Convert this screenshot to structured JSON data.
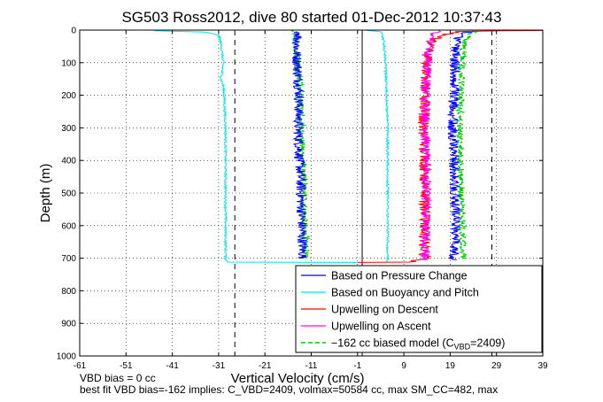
{
  "chart_data": {
    "type": "line",
    "title": "SG503 Ross2012, dive 80 started 01-Dec-2012 10:37:43",
    "xlabel": "Vertical Velocity (cm/s)",
    "ylabel": "Depth (m)",
    "xlim": [
      -61,
      39
    ],
    "ylim": [
      1000,
      0
    ],
    "x_ticks": [
      -61,
      -51,
      -41,
      -31,
      -21,
      -11,
      -1,
      9,
      19,
      29,
      39
    ],
    "y_ticks": [
      0,
      100,
      200,
      300,
      400,
      500,
      600,
      700,
      800,
      900,
      1000
    ],
    "grid": true,
    "legend_position": "bottom-right",
    "reference_lines": {
      "zero_line_x": 0,
      "dashed_lines_x": [
        -27.5,
        28
      ]
    },
    "series": [
      {
        "name": "Based on Pressure Change",
        "color": "#0000ff",
        "style": "solid",
        "descent": [
          [
            -13.5,
            5
          ],
          [
            -13.8,
            20
          ],
          [
            -14.2,
            60
          ],
          [
            -14.0,
            100
          ],
          [
            -13.6,
            200
          ],
          [
            -13.8,
            300
          ],
          [
            -13.5,
            400
          ],
          [
            -13.2,
            500
          ],
          [
            -13.0,
            600
          ],
          [
            -12.8,
            700
          ]
        ],
        "ascent": [
          [
            19.5,
            705
          ],
          [
            19.8,
            700
          ],
          [
            20.2,
            600
          ],
          [
            20.0,
            500
          ],
          [
            19.8,
            400
          ],
          [
            19.6,
            300
          ],
          [
            19.8,
            200
          ],
          [
            20.0,
            100
          ],
          [
            20.4,
            40
          ],
          [
            21.5,
            10
          ],
          [
            24.0,
            2
          ]
        ]
      },
      {
        "name": "Based on Buoyancy and Pitch",
        "color": "#00e5e5",
        "style": "solid",
        "descent": [
          [
            -45,
            2
          ],
          [
            -34,
            6
          ],
          [
            -31,
            15
          ],
          [
            -30.5,
            40
          ],
          [
            -30,
            100
          ],
          [
            -30.5,
            150
          ],
          [
            -30.0,
            170
          ],
          [
            -29.8,
            200
          ],
          [
            -29.5,
            300
          ],
          [
            -29.5,
            400
          ],
          [
            -29.5,
            500
          ],
          [
            -29.5,
            600
          ],
          [
            -29.5,
            700
          ],
          [
            -29.2,
            712
          ],
          [
            -1,
            713
          ]
        ],
        "ascent": [
          [
            5.5,
            712
          ],
          [
            5.5,
            700
          ],
          [
            5.5,
            600
          ],
          [
            5.5,
            500
          ],
          [
            5.5,
            400
          ],
          [
            5.5,
            300
          ],
          [
            5.3,
            200
          ],
          [
            5.0,
            100
          ],
          [
            5.0,
            80
          ],
          [
            4.6,
            30
          ],
          [
            4.0,
            5
          ],
          [
            1,
            1
          ]
        ]
      },
      {
        "name": "Upwelling on Descent",
        "color": "#ff0000",
        "style": "solid",
        "points": [
          [
            -1,
            713
          ],
          [
            10,
            712
          ],
          [
            13.5,
            700
          ],
          [
            13.5,
            600
          ],
          [
            13.5,
            500
          ],
          [
            13.5,
            400
          ],
          [
            13.2,
            300
          ],
          [
            13.5,
            200
          ],
          [
            13.8,
            100
          ],
          [
            14.5,
            40
          ],
          [
            17,
            15
          ],
          [
            21,
            5
          ],
          [
            30,
            2
          ],
          [
            39,
            1
          ]
        ]
      },
      {
        "name": "Upwelling on Ascent",
        "color": "#ff00ff",
        "style": "solid",
        "points": [
          [
            13.5,
            705
          ],
          [
            13.8,
            600
          ],
          [
            13.8,
            500
          ],
          [
            13.8,
            400
          ],
          [
            13.6,
            300
          ],
          [
            13.6,
            200
          ],
          [
            14.0,
            100
          ],
          [
            14.5,
            40
          ],
          [
            15.5,
            10
          ],
          [
            16.5,
            2
          ]
        ]
      },
      {
        "name": "−162 cc biased model (C_VBD=2409)",
        "color": "#00cc00",
        "style": "dashed",
        "descent": [
          [
            -15,
            1
          ],
          [
            -14.5,
            10
          ],
          [
            -14.5,
            60
          ],
          [
            -13.8,
            100
          ],
          [
            -13.4,
            200
          ],
          [
            -13.2,
            300
          ],
          [
            -12.9,
            400
          ],
          [
            -12.6,
            500
          ],
          [
            -12.5,
            600
          ],
          [
            -12.2,
            700
          ]
        ],
        "ascent": [
          [
            22.0,
            700
          ],
          [
            21.6,
            600
          ],
          [
            21.4,
            500
          ],
          [
            21.2,
            400
          ],
          [
            21.0,
            300
          ],
          [
            21.2,
            200
          ],
          [
            21.5,
            100
          ],
          [
            22.0,
            40
          ],
          [
            23,
            10
          ],
          [
            25,
            2
          ]
        ]
      }
    ],
    "legend_entries": [
      {
        "text": "Based on Pressure Change",
        "color": "#0000ff",
        "dashed": false
      },
      {
        "text": "Based on Buoyancy and Pitch",
        "color": "#00e5e5",
        "dashed": false
      },
      {
        "text": "Upwelling on Descent",
        "color": "#ff0000",
        "dashed": false
      },
      {
        "text": "Upwelling on Ascent",
        "color": "#ff00ff",
        "dashed": false
      },
      {
        "text": "−162 cc biased model (C",
        "sub": "VBD",
        "tail": "=2409)",
        "color": "#00cc00",
        "dashed": true
      }
    ],
    "footnotes": [
      "VBD bias = 0 cc",
      "best fit VBD bias=-162 implies: C_VBD=2409, volmax=50584 cc, max SM_CC=482, max"
    ]
  }
}
